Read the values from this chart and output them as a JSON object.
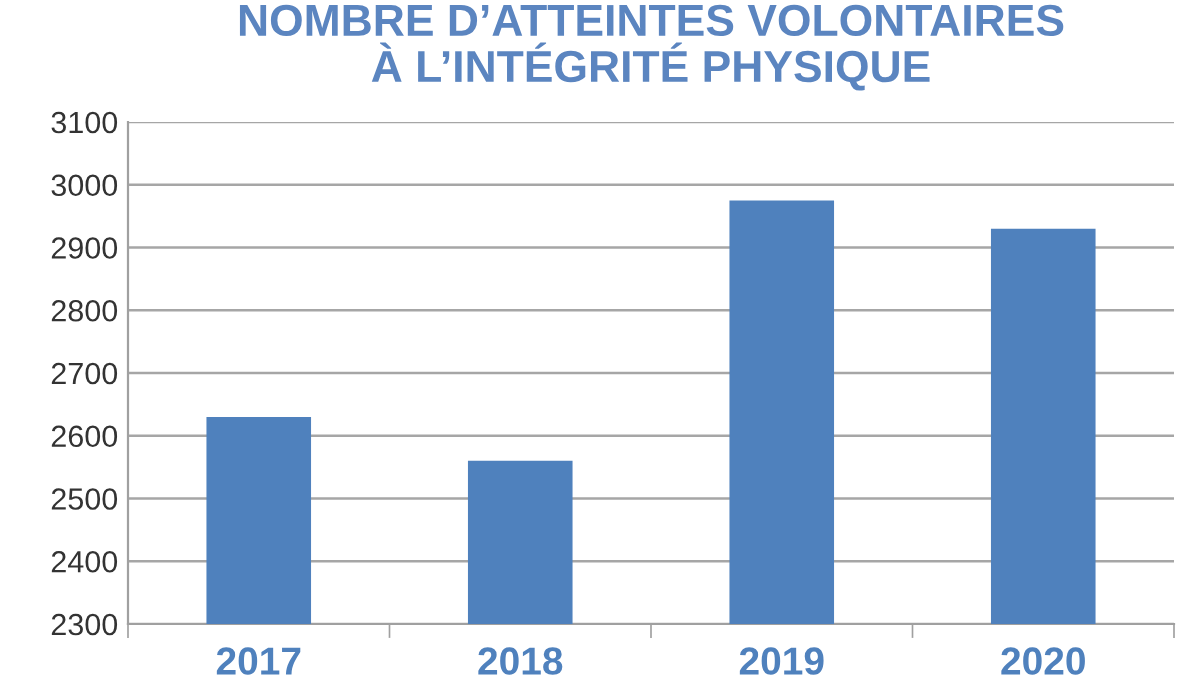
{
  "chart_data": {
    "type": "bar",
    "title": "NOMBRE D’ATTEINTES VOLONTAIRES\nÀ L’INTÉGRITÉ PHYSIQUE",
    "categories": [
      "2017",
      "2018",
      "2019",
      "2020"
    ],
    "values": [
      2630,
      2560,
      2975,
      2930
    ],
    "color": "#4f81bd",
    "ylim": [
      2300,
      3100
    ],
    "yticks": [
      2300,
      2400,
      2500,
      2600,
      2700,
      2800,
      2900,
      3000,
      3100
    ],
    "grid": "y"
  }
}
